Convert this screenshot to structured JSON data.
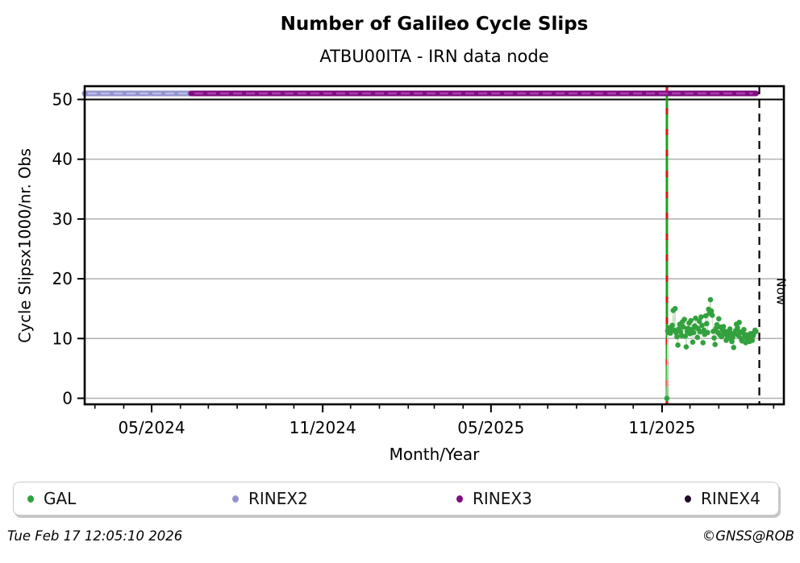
{
  "header": {
    "title": "Number of Galileo Cycle Slips",
    "subtitle": "ATBU00ITA - IRN data node"
  },
  "axes": {
    "xlabel": "Month/Year",
    "ylabel": "Cycle Slipsx1000/nr. Obs"
  },
  "annotations": {
    "now_label": "Now"
  },
  "legend": {
    "items": [
      {
        "label": "GAL",
        "color": "#33a13d"
      },
      {
        "label": "RINEX2",
        "color": "#9393cf"
      },
      {
        "label": "RINEX3",
        "color": "#800d80"
      },
      {
        "label": "RINEX4",
        "color": "#220a2c"
      }
    ]
  },
  "footer": {
    "timestamp": "Tue Feb 17 12:05:10 2026",
    "credit": "©GNSS@ROB"
  },
  "chart_data": {
    "type": "scatter",
    "title": "Number of Galileo Cycle Slips",
    "subtitle": "ATBU00ITA - IRN data node",
    "xlabel": "Month/Year",
    "ylabel": "Cycle Slipsx1000/nr. Obs",
    "grid": true,
    "grid_color": "#b0b0b0",
    "threshold_line_value": 50,
    "threshold_line_color": "#000000",
    "y_axis": {
      "ticks": [
        0,
        10,
        20,
        30,
        40,
        50
      ],
      "range": [
        -1.01,
        52.22
      ]
    },
    "x_axis": {
      "note": "days are counted from 2024-05-01; domain is the visible x-range",
      "domain_days": [
        -72,
        680
      ],
      "major_ticks": [
        {
          "label": "05/2024",
          "day": 0
        },
        {
          "label": "11/2024",
          "day": 184
        },
        {
          "label": "05/2025",
          "day": 365
        },
        {
          "label": "11/2025",
          "day": 549
        }
      ],
      "minor_tick_days": [
        -61,
        -30,
        0,
        31,
        61,
        92,
        123,
        153,
        184,
        214,
        245,
        276,
        304,
        335,
        365,
        396,
        426,
        457,
        488,
        518,
        549,
        579,
        610,
        641,
        669
      ]
    },
    "series": [
      {
        "name": "RINEX2",
        "type": "presence-line",
        "y_value": 51,
        "start_day": -72,
        "end_day": 42.5,
        "color": "#9393cf",
        "dash_tint": "#bcbce4"
      },
      {
        "name": "RINEX3",
        "type": "presence-line",
        "y_value": 51,
        "start_day": 42.5,
        "end_day": 650,
        "color": "#800d80",
        "dash_tint": "#a93fae"
      },
      {
        "name": "GAL",
        "type": "scatter",
        "color": "#33a13d",
        "connector_color": "#c9e6c9",
        "points_note": "pairs of [days after 2025-11-01, cycle slips x1000/nr.obs], values estimated from plot",
        "points": [
          [
            5.2,
            0
          ],
          [
            6,
            11.3
          ],
          [
            7,
            11.0
          ],
          [
            8,
            11.8
          ],
          [
            9,
            10.9
          ],
          [
            10,
            11.5
          ],
          [
            11,
            12.2
          ],
          [
            12,
            14.7
          ],
          [
            13,
            11.4
          ],
          [
            14,
            15.0
          ],
          [
            15,
            11.0
          ],
          [
            16,
            10.3
          ],
          [
            17,
            8.9
          ],
          [
            18,
            11.6
          ],
          [
            19,
            12.4
          ],
          [
            20,
            11.1
          ],
          [
            21,
            10.5
          ],
          [
            22,
            12.8
          ],
          [
            23,
            11.9
          ],
          [
            24,
            13.2
          ],
          [
            25,
            10.4
          ],
          [
            26,
            8.6
          ],
          [
            27,
            11.2
          ],
          [
            28,
            11.7
          ],
          [
            29,
            12.6
          ],
          [
            30,
            10.8
          ],
          [
            31,
            13.0
          ],
          [
            32,
            11.5
          ],
          [
            33,
            9.4
          ],
          [
            34,
            11.0
          ],
          [
            35,
            12.1
          ],
          [
            36,
            13.4
          ],
          [
            37,
            11.8
          ],
          [
            38,
            10.2
          ],
          [
            39,
            11.6
          ],
          [
            40,
            12.9
          ],
          [
            41,
            11.1
          ],
          [
            42,
            13.6
          ],
          [
            43,
            12.2
          ],
          [
            44,
            9.3
          ],
          [
            45,
            11.4
          ],
          [
            46,
            10.7
          ],
          [
            47,
            13.8
          ],
          [
            48,
            12.5
          ],
          [
            49,
            11.0
          ],
          [
            50,
            14.9
          ],
          [
            51,
            14.2
          ],
          [
            52,
            16.5
          ],
          [
            53,
            14.6
          ],
          [
            54,
            13.9
          ],
          [
            55,
            11.2
          ],
          [
            56,
            10.1
          ],
          [
            57,
            9.0
          ],
          [
            58,
            11.7
          ],
          [
            59,
            12.3
          ],
          [
            60,
            11.0
          ],
          [
            61,
            13.3
          ],
          [
            62,
            10.6
          ],
          [
            63,
            11.9
          ],
          [
            64,
            10.3
          ],
          [
            65,
            11.4
          ],
          [
            66,
            12.0
          ],
          [
            67,
            10.8
          ],
          [
            68,
            11.2
          ],
          [
            69,
            9.7
          ],
          [
            70,
            10.4
          ],
          [
            71,
            11.0
          ],
          [
            72,
            10.1
          ],
          [
            73,
            11.6
          ],
          [
            74,
            10.9
          ],
          [
            75,
            9.5
          ],
          [
            76,
            10.2
          ],
          [
            77,
            8.5
          ],
          [
            78,
            10.8
          ],
          [
            79,
            11.3
          ],
          [
            80,
            12.4
          ],
          [
            81,
            11.8
          ],
          [
            82,
            10.5
          ],
          [
            83,
            12.7
          ],
          [
            84,
            11.1
          ],
          [
            85,
            10.0
          ],
          [
            86,
            9.6
          ],
          [
            87,
            10.9
          ],
          [
            88,
            11.5
          ],
          [
            89,
            10.2
          ],
          [
            90,
            9.3
          ],
          [
            91,
            10.6
          ],
          [
            92,
            9.9
          ],
          [
            93,
            10.4
          ],
          [
            94,
            9.5
          ],
          [
            95,
            10.8
          ],
          [
            96,
            10.1
          ],
          [
            97,
            9.7
          ],
          [
            98,
            10.5
          ],
          [
            99,
            11.0
          ],
          [
            100,
            11.4
          ],
          [
            101,
            11.2
          ]
        ]
      }
    ],
    "event_line": {
      "day": 554.2,
      "color": "#1ea321",
      "overlay_color": "#cf1b1b",
      "style": "green solid with red dashes, full height"
    },
    "now_line": {
      "day": 653.6,
      "label": "Now",
      "color": "#000000",
      "style": "dashed, full height"
    },
    "legend_entries": [
      "GAL",
      "RINEX2",
      "RINEX3",
      "RINEX4"
    ],
    "legend_position": "bottom"
  }
}
